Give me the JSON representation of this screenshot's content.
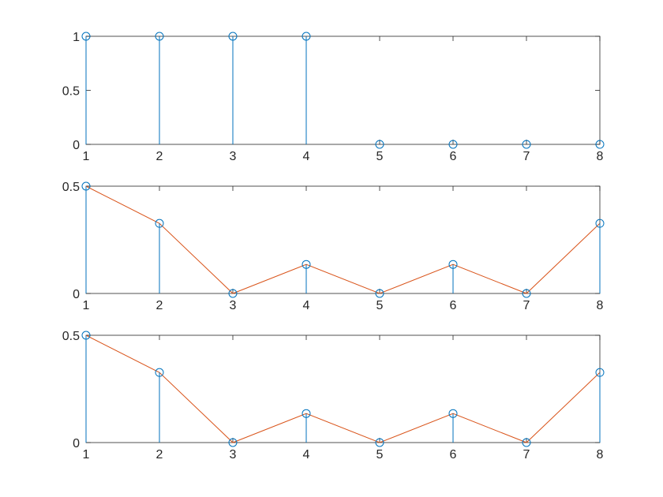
{
  "chart_data": [
    {
      "type": "stem",
      "x": [
        1,
        2,
        3,
        4,
        5,
        6,
        7,
        8
      ],
      "values": [
        1,
        1,
        1,
        1,
        0,
        0,
        0,
        0
      ],
      "xlim": [
        1,
        8
      ],
      "ylim": [
        0,
        1
      ],
      "xticks": [
        "1",
        "2",
        "3",
        "4",
        "5",
        "6",
        "7",
        "8"
      ],
      "yticks": [
        {
          "v": 0,
          "label": "0"
        },
        {
          "v": 0.5,
          "label": "0.5"
        },
        {
          "v": 1,
          "label": "1"
        }
      ],
      "show_line": false,
      "grid": false
    },
    {
      "type": "stem",
      "x": [
        1,
        2,
        3,
        4,
        5,
        6,
        7,
        8
      ],
      "values": [
        0.5,
        0.3266,
        0,
        0.1353,
        0,
        0.1353,
        0,
        0.3266
      ],
      "xlim": [
        1,
        8
      ],
      "ylim": [
        0,
        0.5
      ],
      "xticks": [
        "1",
        "2",
        "3",
        "4",
        "5",
        "6",
        "7",
        "8"
      ],
      "yticks": [
        {
          "v": 0,
          "label": "0"
        },
        {
          "v": 0.5,
          "label": "0.5"
        }
      ],
      "show_line": true,
      "grid": false
    },
    {
      "type": "stem",
      "x": [
        1,
        2,
        3,
        4,
        5,
        6,
        7,
        8
      ],
      "values": [
        0.5,
        0.3266,
        0,
        0.1353,
        0,
        0.1353,
        0,
        0.3266
      ],
      "xlim": [
        1,
        8
      ],
      "ylim": [
        0,
        0.5
      ],
      "xticks": [
        "1",
        "2",
        "3",
        "4",
        "5",
        "6",
        "7",
        "8"
      ],
      "yticks": [
        {
          "v": 0,
          "label": "0"
        },
        {
          "v": 0.5,
          "label": "0.5"
        }
      ],
      "show_line": true,
      "grid": false
    }
  ],
  "colors": {
    "stem": "#0072BD",
    "line": "#D95319",
    "axes": "#262626"
  }
}
